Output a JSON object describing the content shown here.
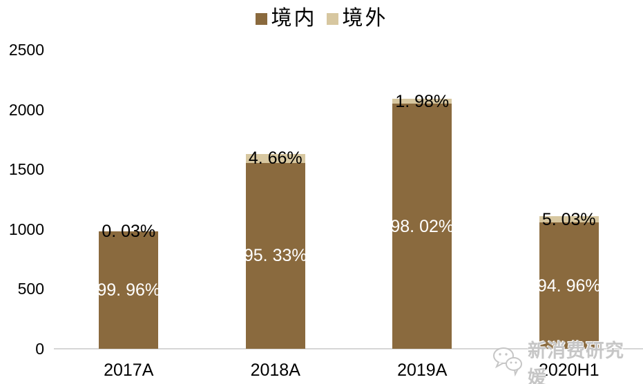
{
  "chart_data": {
    "type": "bar",
    "stacked": true,
    "title": "",
    "categories": [
      "2017A",
      "2018A",
      "2019A",
      "2020H1"
    ],
    "series": [
      {
        "name": "境内",
        "color": "#8A6A3E",
        "label_color": "#FFFFFF",
        "percent": [
          99.96,
          95.33,
          98.02,
          94.96
        ],
        "percent_labels": [
          "99. 96%",
          "95. 33%",
          "98. 02%",
          "94. 96%"
        ]
      },
      {
        "name": "境外",
        "color": "#D7C7A0",
        "label_color": "#000000",
        "percent": [
          0.03,
          4.66,
          1.98,
          5.03
        ],
        "percent_labels": [
          "0. 03%",
          "4. 66%",
          "1. 98%",
          "5. 03%"
        ]
      }
    ],
    "totals_estimated": [
      980,
      1630,
      2090,
      1110
    ],
    "ylim": [
      0,
      2500
    ],
    "yticks": [
      0,
      500,
      1000,
      1500,
      2000,
      2500
    ],
    "grid": false,
    "legend_position": "top",
    "axis_line_color": "#D6D6D6"
  },
  "watermark": {
    "icon": "wechat-icon",
    "text": "新消费研究媛",
    "color": "#C6C6C6"
  }
}
